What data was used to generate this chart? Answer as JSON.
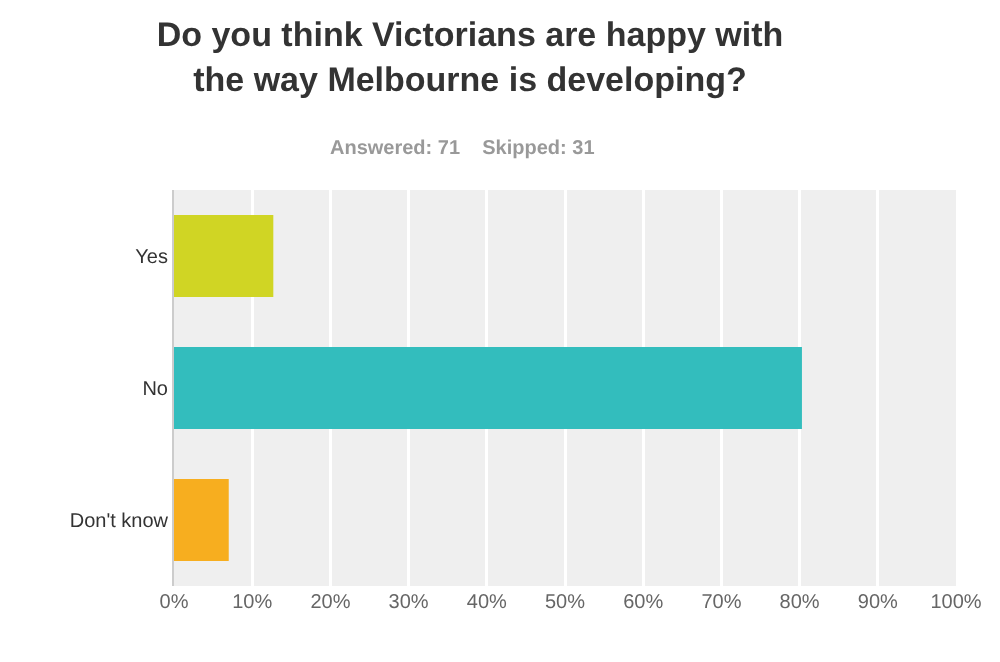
{
  "chart_data": {
    "type": "bar",
    "orientation": "horizontal",
    "title": "Do you think Victorians are happy with the way Melbourne is developing?",
    "subtitle": "Answered: 71    Skipped: 31",
    "categories": [
      "Yes",
      "No",
      "Don't know"
    ],
    "values": [
      12.7,
      80.3,
      7.0
    ],
    "colors": [
      "#d0d524",
      "#33bdbd",
      "#f7ae1f"
    ],
    "xlim": [
      0,
      100
    ],
    "xticks": [
      {
        "value": 0,
        "label": "0%"
      },
      {
        "value": 10,
        "label": "10%"
      },
      {
        "value": 20,
        "label": "20%"
      },
      {
        "value": 30,
        "label": "30%"
      },
      {
        "value": 40,
        "label": "40%"
      },
      {
        "value": 50,
        "label": "50%"
      },
      {
        "value": 60,
        "label": "60%"
      },
      {
        "value": 70,
        "label": "70%"
      },
      {
        "value": 80,
        "label": "80%"
      },
      {
        "value": 90,
        "label": "90%"
      },
      {
        "value": 100,
        "label": "100%"
      }
    ],
    "grid": "x"
  }
}
